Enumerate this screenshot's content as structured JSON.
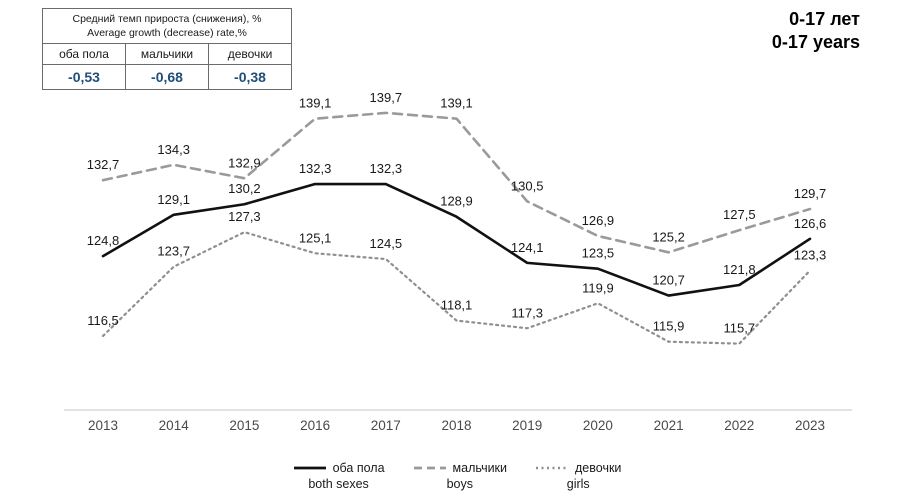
{
  "title": {
    "line1": "0-17 лет",
    "line2": "0-17 years"
  },
  "stats_table": {
    "header_ru": "Средний темп прироста (снижения), %",
    "header_en": "Average growth (decrease) rate,%",
    "columns": [
      "оба пола",
      "мальчики",
      "девочки"
    ],
    "values": [
      "-0,53",
      "-0,68",
      "-0,38"
    ],
    "value_color": "#1f4e79"
  },
  "chart_data": {
    "type": "line",
    "x": [
      2013,
      2014,
      2015,
      2016,
      2017,
      2018,
      2019,
      2020,
      2021,
      2022,
      2023
    ],
    "series": [
      {
        "name": "оба пола",
        "name_en": "both sexes",
        "style": "solid",
        "color": "#111111",
        "values": [
          124.8,
          129.1,
          130.2,
          132.3,
          132.3,
          128.9,
          124.1,
          123.5,
          120.7,
          121.8,
          126.6
        ]
      },
      {
        "name": "мальчики",
        "name_en": "boys",
        "style": "dashed",
        "color": "#9a9a9a",
        "values": [
          132.7,
          134.3,
          132.9,
          139.1,
          139.7,
          139.1,
          130.5,
          126.9,
          125.2,
          127.5,
          129.7
        ]
      },
      {
        "name": "девочки",
        "name_en": "girls",
        "style": "dotted",
        "color": "#8f8f8f",
        "values": [
          116.5,
          123.7,
          127.3,
          125.1,
          124.5,
          118.1,
          117.3,
          119.9,
          115.9,
          115.7,
          123.3
        ]
      }
    ],
    "ylim": [
      114,
      140
    ],
    "grid": false,
    "legend_position": "bottom",
    "value_label_format": "comma-decimal",
    "axis_color": "#d8d8d8",
    "tick_color": "#4a4a4a",
    "label_color": "#1a1a1a"
  }
}
